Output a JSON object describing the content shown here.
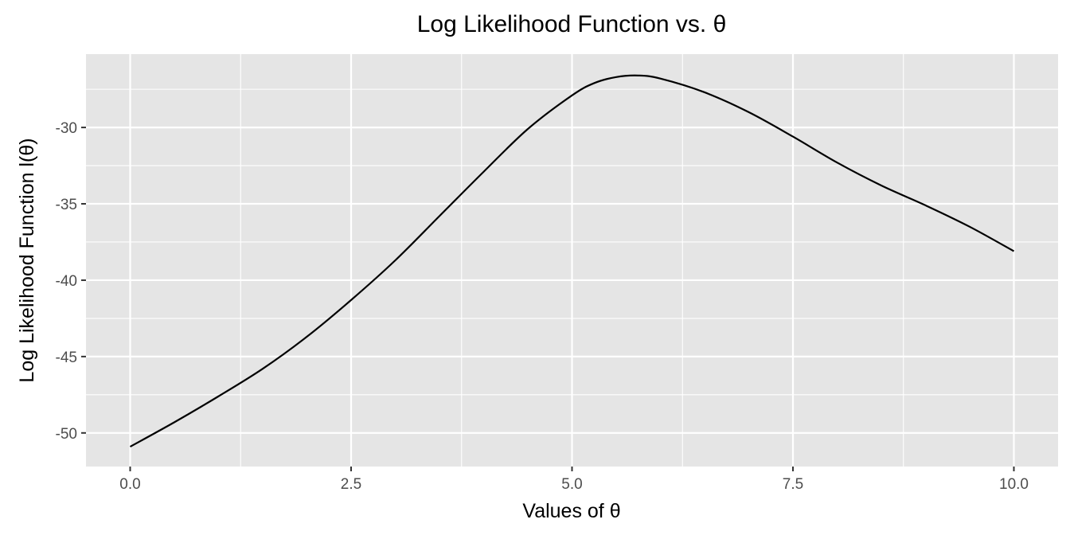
{
  "chart_data": {
    "type": "line",
    "title": "Log Likelihood Function vs. θ",
    "xlabel": "Values of θ",
    "ylabel": "Log Likelihood Function l(θ)",
    "xlim": [
      -0.5,
      10.5
    ],
    "ylim": [
      -52.2,
      -25.2
    ],
    "x_ticks": [
      0,
      2.5,
      5,
      7.5,
      10
    ],
    "x_tick_labels": [
      "0.0",
      "2.5",
      "5.0",
      "7.5",
      "10.0"
    ],
    "y_ticks": [
      -50,
      -45,
      -40,
      -35,
      -30
    ],
    "y_tick_labels": [
      "-50",
      "-45",
      "-40",
      "-35",
      "-30"
    ],
    "grid": true,
    "colors": {
      "panel": "#e5e5e5",
      "grid": "#ffffff",
      "line": "#000000"
    },
    "series": [
      {
        "x": [
          0,
          0.5,
          1,
          1.5,
          2,
          2.5,
          3,
          3.5,
          4,
          4.5,
          5,
          5.25,
          5.5,
          5.75,
          6,
          6.5,
          7,
          7.5,
          8,
          8.5,
          9,
          9.5,
          10
        ],
        "y": [
          -50.9,
          -49.3,
          -47.6,
          -45.8,
          -43.7,
          -41.3,
          -38.7,
          -35.8,
          -32.9,
          -30.1,
          -27.9,
          -27.1,
          -26.7,
          -26.6,
          -26.8,
          -27.7,
          -29.0,
          -30.6,
          -32.3,
          -33.8,
          -35.1,
          -36.5,
          -38.1
        ]
      }
    ]
  }
}
